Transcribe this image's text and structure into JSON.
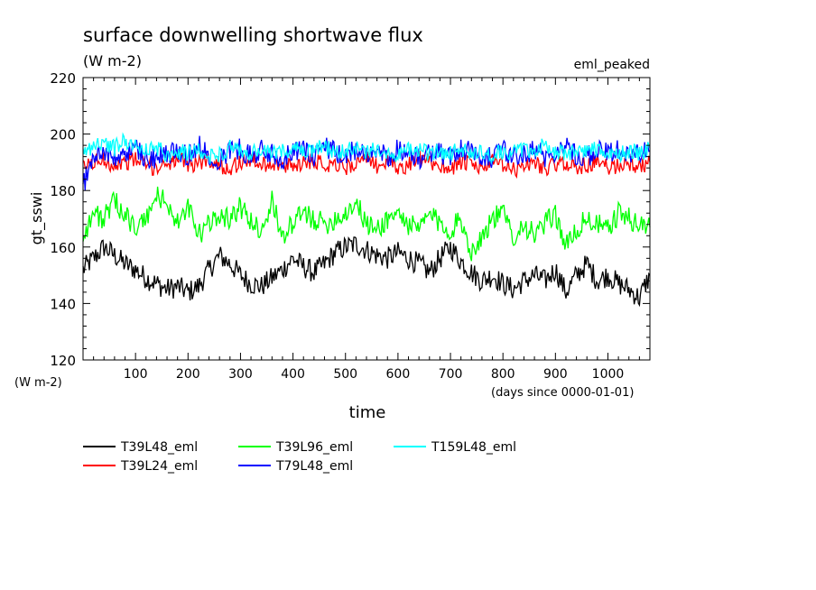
{
  "chart_data": {
    "type": "line",
    "title": "surface downwelling shortwave flux",
    "subtitle": "(W m-2)",
    "annotation": "eml_peaked",
    "xlabel": "time",
    "xunits": "(days since 0000-01-01)",
    "ylabel": "gt_sswi",
    "yunits": "(W m-2)",
    "xlim": [
      0,
      1080
    ],
    "ylim": [
      120,
      220
    ],
    "xticks": [
      100,
      200,
      300,
      400,
      500,
      600,
      700,
      800,
      900,
      1000
    ],
    "yticks": [
      120,
      140,
      160,
      180,
      200,
      220
    ],
    "grid": false,
    "legend_position": "bottom",
    "series": [
      {
        "name": "T39L48_eml",
        "color": "#000000",
        "x": [
          0,
          20,
          40,
          60,
          80,
          100,
          120,
          140,
          160,
          180,
          200,
          220,
          240,
          260,
          280,
          300,
          320,
          340,
          360,
          380,
          400,
          420,
          440,
          460,
          480,
          500,
          520,
          540,
          560,
          580,
          600,
          620,
          640,
          660,
          680,
          700,
          720,
          740,
          760,
          780,
          800,
          820,
          840,
          860,
          880,
          900,
          920,
          940,
          960,
          980,
          1000,
          1020,
          1040,
          1060,
          1080
        ],
        "values": [
          152,
          156,
          160,
          157,
          154,
          152,
          149,
          147,
          145,
          146,
          144,
          146,
          152,
          157,
          154,
          150,
          147,
          146,
          149,
          152,
          156,
          153,
          151,
          154,
          158,
          160,
          161,
          159,
          157,
          156,
          158,
          156,
          154,
          151,
          156,
          160,
          155,
          151,
          148,
          150,
          147,
          145,
          148,
          150,
          148,
          152,
          144,
          150,
          154,
          148,
          150,
          147,
          145,
          142,
          150
        ]
      },
      {
        "name": "T39L24_eml",
        "color": "#ff0000",
        "x": [
          0,
          20,
          40,
          60,
          80,
          100,
          120,
          140,
          160,
          180,
          200,
          220,
          240,
          260,
          280,
          300,
          320,
          340,
          360,
          380,
          400,
          420,
          440,
          460,
          480,
          500,
          520,
          540,
          560,
          580,
          600,
          620,
          640,
          660,
          680,
          700,
          720,
          740,
          760,
          780,
          800,
          820,
          840,
          860,
          880,
          900,
          920,
          940,
          960,
          980,
          1000,
          1020,
          1040,
          1060,
          1080
        ],
        "values": [
          188,
          190,
          191,
          189,
          190,
          191,
          189,
          188,
          190,
          191,
          189,
          190,
          191,
          189,
          188,
          190,
          191,
          189,
          190,
          188,
          189,
          190,
          191,
          189,
          190,
          188,
          190,
          191,
          189,
          190,
          188,
          189,
          191,
          190,
          189,
          188,
          190,
          189,
          188,
          190,
          189,
          187,
          189,
          190,
          188,
          189,
          190,
          188,
          189,
          190,
          188,
          189,
          190,
          188,
          190
        ]
      },
      {
        "name": "T39L96_eml",
        "color": "#00ff00",
        "x": [
          0,
          20,
          40,
          60,
          80,
          100,
          120,
          140,
          160,
          180,
          200,
          220,
          240,
          260,
          280,
          300,
          320,
          340,
          360,
          380,
          400,
          420,
          440,
          460,
          480,
          500,
          520,
          540,
          560,
          580,
          600,
          620,
          640,
          660,
          680,
          700,
          720,
          740,
          760,
          780,
          800,
          820,
          840,
          860,
          880,
          900,
          920,
          940,
          960,
          980,
          1000,
          1020,
          1040,
          1060,
          1080
        ],
        "values": [
          164,
          172,
          170,
          176,
          172,
          166,
          170,
          178,
          176,
          168,
          174,
          164,
          168,
          172,
          170,
          174,
          169,
          166,
          176,
          164,
          168,
          172,
          170,
          168,
          170,
          172,
          176,
          168,
          166,
          170,
          172,
          168,
          166,
          172,
          168,
          166,
          170,
          158,
          164,
          170,
          172,
          164,
          168,
          164,
          168,
          172,
          160,
          166,
          170,
          168,
          166,
          172,
          170,
          168,
          167
        ]
      },
      {
        "name": "T79L48_eml",
        "color": "#0000ff",
        "x": [
          0,
          20,
          40,
          60,
          80,
          100,
          120,
          140,
          160,
          180,
          200,
          220,
          240,
          260,
          280,
          300,
          320,
          340,
          360,
          380,
          400,
          420,
          440,
          460,
          480,
          500,
          520,
          540,
          560,
          580,
          600,
          620,
          640,
          660,
          680,
          700,
          720,
          740,
          760,
          780,
          800,
          820,
          840,
          860,
          880,
          900,
          920,
          940,
          960,
          980,
          1000,
          1020,
          1040,
          1060,
          1080
        ],
        "values": [
          182,
          192,
          194,
          191,
          193,
          195,
          192,
          191,
          193,
          194,
          192,
          196,
          193,
          191,
          194,
          195,
          192,
          194,
          193,
          191,
          195,
          194,
          192,
          196,
          193,
          191,
          195,
          194,
          193,
          192,
          195,
          193,
          191,
          194,
          193,
          192,
          195,
          194,
          193,
          191,
          194,
          192,
          193,
          195,
          192,
          194,
          196,
          193,
          192,
          194,
          193,
          195,
          192,
          193,
          194
        ]
      },
      {
        "name": "T159L48_eml",
        "color": "#00ffff",
        "x": [
          0,
          20,
          40,
          60,
          80,
          100,
          120,
          140,
          160,
          180,
          200,
          220,
          240,
          260,
          280,
          300,
          320,
          340,
          360,
          380,
          400,
          420,
          440,
          460,
          480,
          500,
          520,
          540,
          560,
          580,
          600,
          620,
          640,
          660,
          680,
          700,
          720,
          740,
          760,
          780,
          800,
          820,
          840,
          860,
          880,
          900,
          920,
          940,
          960,
          980,
          1000,
          1020,
          1040,
          1060,
          1080
        ],
        "values": [
          193,
          196,
          197,
          195,
          198,
          196,
          194,
          195,
          193,
          194,
          193,
          194,
          192,
          193,
          195,
          194,
          193,
          194,
          193,
          194,
          195,
          193,
          194,
          196,
          193,
          194,
          195,
          193,
          195,
          194,
          193,
          194,
          195,
          193,
          194,
          193,
          195,
          194,
          193,
          192,
          194,
          193,
          195,
          194,
          196,
          193,
          194,
          193,
          195,
          194,
          192,
          193,
          194,
          193,
          195
        ]
      }
    ]
  }
}
